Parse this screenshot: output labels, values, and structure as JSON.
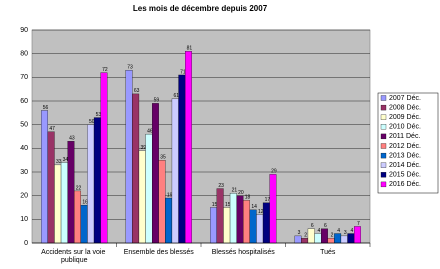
{
  "chart_data": {
    "type": "bar",
    "title": "Les mois de décembre depuis 2007",
    "categories": [
      "Accidents sur la voie publique",
      "Ensemble des blessés",
      "Blessés hospitalisés",
      "Tués"
    ],
    "series": [
      {
        "name": "2007 Déc.",
        "color": "#9999ff",
        "values": [
          56,
          73,
          15,
          3
        ]
      },
      {
        "name": "2008 Déc.",
        "color": "#993366",
        "values": [
          47,
          63,
          23,
          2
        ]
      },
      {
        "name": "2009 Déc.",
        "color": "#ffffcc",
        "values": [
          33,
          39,
          15,
          6
        ]
      },
      {
        "name": "2010 Déc.",
        "color": "#ccffff",
        "values": [
          34,
          46,
          21,
          4
        ]
      },
      {
        "name": "2011 Déc.",
        "color": "#660066",
        "values": [
          43,
          59,
          20,
          6
        ]
      },
      {
        "name": "2012 Déc.",
        "color": "#ff8080",
        "values": [
          22,
          35,
          18,
          2
        ]
      },
      {
        "name": "2013 Déc.",
        "color": "#0066cc",
        "values": [
          16,
          19,
          14,
          4
        ]
      },
      {
        "name": "2014 Déc.",
        "color": "#ccccff",
        "values": [
          50,
          61,
          12,
          3
        ]
      },
      {
        "name": "2015 Déc.",
        "color": "#000080",
        "values": [
          53,
          71,
          17,
          4
        ]
      },
      {
        "name": "2016 Déc.",
        "color": "#ff00ff",
        "values": [
          72,
          81,
          29,
          7
        ]
      }
    ],
    "ylim": [
      0,
      90
    ],
    "yticks": [
      0,
      10,
      20,
      30,
      40,
      50,
      60,
      70,
      80,
      90
    ],
    "grid": true,
    "legend": "right"
  }
}
